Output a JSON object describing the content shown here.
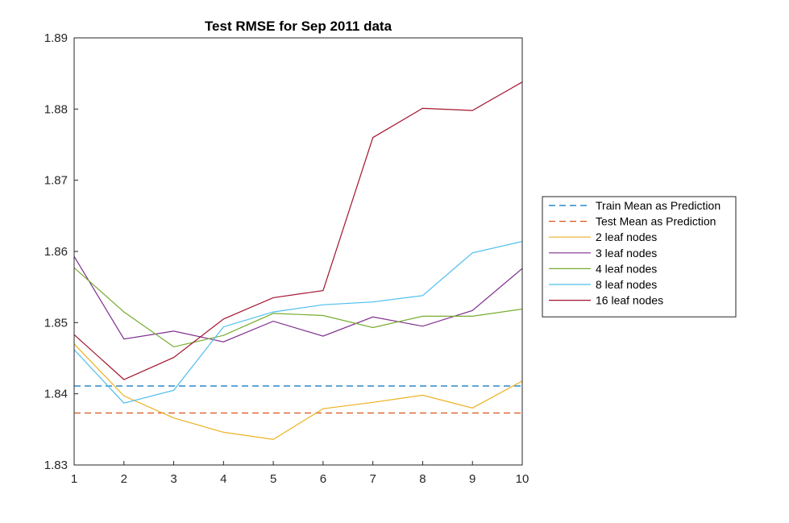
{
  "chart_data": {
    "type": "line",
    "title": "Test RMSE for Sep 2011 data",
    "xlabel": "",
    "ylabel": "",
    "xlim": [
      1,
      10
    ],
    "ylim": [
      1.83,
      1.89
    ],
    "xticks": [
      1,
      2,
      3,
      4,
      5,
      6,
      7,
      8,
      9,
      10
    ],
    "yticks": [
      1.83,
      1.84,
      1.85,
      1.86,
      1.87,
      1.88,
      1.89
    ],
    "ytick_labels": [
      "1.83",
      "1.84",
      "1.85",
      "1.86",
      "1.87",
      "1.88",
      "1.89"
    ],
    "grid": false,
    "legend_position": "right",
    "x": [
      1,
      2,
      3,
      4,
      5,
      6,
      7,
      8,
      9,
      10
    ],
    "series": [
      {
        "name": "Train Mean as Prediction",
        "color": "#0072BD",
        "style": "dashed",
        "values": [
          1.8411,
          1.8411,
          1.8411,
          1.8411,
          1.8411,
          1.8411,
          1.8411,
          1.8411,
          1.8411,
          1.8411
        ]
      },
      {
        "name": "Test Mean as Prediction",
        "color": "#D95319",
        "style": "dashed",
        "values": [
          1.8373,
          1.8373,
          1.8373,
          1.8373,
          1.8373,
          1.8373,
          1.8373,
          1.8373,
          1.8373,
          1.8373
        ]
      },
      {
        "name": "2 leaf nodes",
        "color": "#EDB120",
        "style": "solid",
        "values": [
          1.847,
          1.8397,
          1.8366,
          1.8346,
          1.8336,
          1.8379,
          1.8388,
          1.8398,
          1.838,
          1.8418
        ]
      },
      {
        "name": "3 leaf nodes",
        "color": "#7E2F8E",
        "style": "solid",
        "values": [
          1.8593,
          1.8477,
          1.8488,
          1.8473,
          1.8502,
          1.8481,
          1.8508,
          1.8495,
          1.8517,
          1.8576
        ]
      },
      {
        "name": "4 leaf nodes",
        "color": "#77AC30",
        "style": "solid",
        "values": [
          1.8577,
          1.8515,
          1.8466,
          1.8482,
          1.8513,
          1.851,
          1.8493,
          1.8509,
          1.8509,
          1.8519
        ]
      },
      {
        "name": "8 leaf nodes",
        "color": "#4DBEEE",
        "style": "solid",
        "values": [
          1.8462,
          1.8387,
          1.8405,
          1.8494,
          1.8515,
          1.8525,
          1.8529,
          1.8538,
          1.8598,
          1.8614
        ]
      },
      {
        "name": "16 leaf nodes",
        "color": "#A2142F",
        "style": "solid",
        "values": [
          1.8483,
          1.842,
          1.8451,
          1.8505,
          1.8535,
          1.8545,
          1.876,
          1.8801,
          1.8798,
          1.8838
        ]
      }
    ]
  }
}
